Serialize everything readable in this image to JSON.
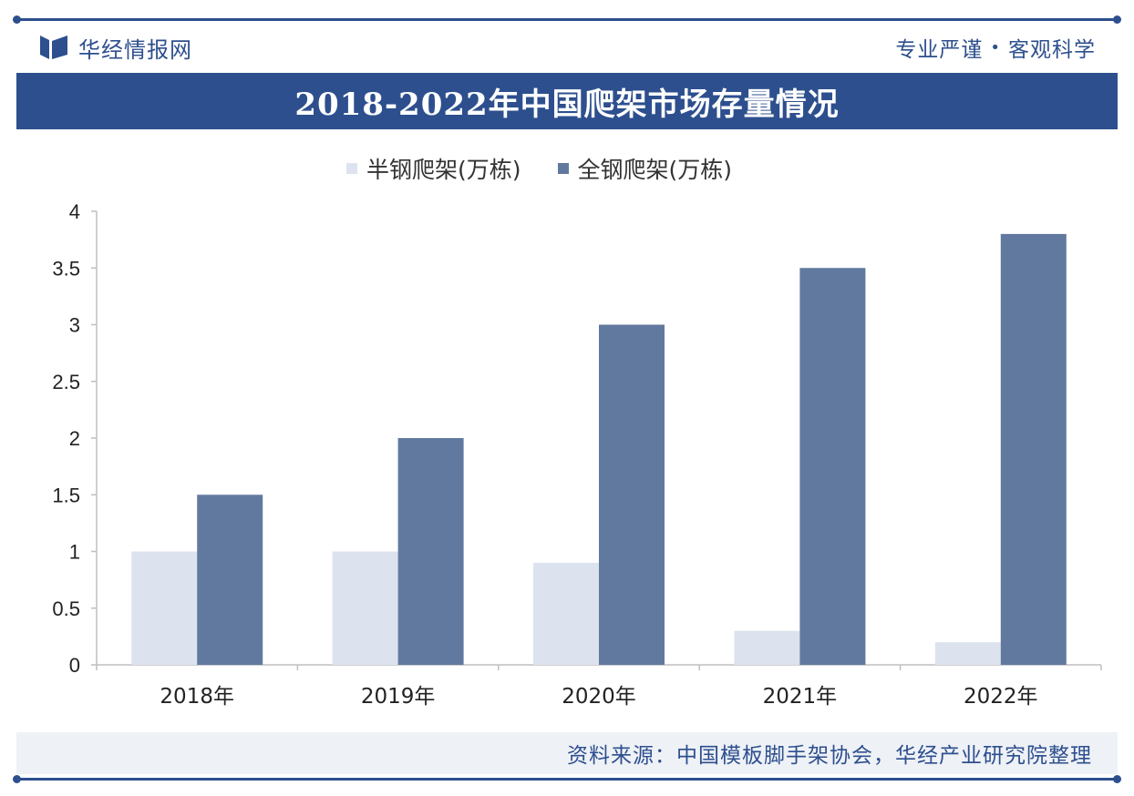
{
  "brand": {
    "name": "华经情报网"
  },
  "slogan": {
    "left": "专业严谨",
    "dot": "•",
    "right": "客观科学"
  },
  "colors": {
    "primary": "#2d4f8e",
    "series1": "#dde3ee",
    "series2": "#61799f"
  },
  "source": "资料来源：中国模板脚手架协会，华经产业研究院整理",
  "chart_data": {
    "type": "bar",
    "title": "2018-2022年中国爬架市场存量情况",
    "xlabel": "",
    "ylabel": "",
    "categories": [
      "2018年",
      "2019年",
      "2020年",
      "2021年",
      "2022年"
    ],
    "series": [
      {
        "name": "半钢爬架(万栋)",
        "values": [
          1,
          1,
          0.9,
          0.3,
          0.2
        ],
        "color": "#dde3ee"
      },
      {
        "name": "全钢爬架(万栋)",
        "values": [
          1.5,
          2,
          3,
          3.5,
          3.8
        ],
        "color": "#61799f"
      }
    ],
    "ylim": [
      0,
      4
    ],
    "yticks": [
      "0",
      "0.5",
      "1",
      "1.5",
      "2",
      "2.5",
      "3",
      "3.5",
      "4"
    ],
    "grid": false,
    "legend": "top-center"
  }
}
